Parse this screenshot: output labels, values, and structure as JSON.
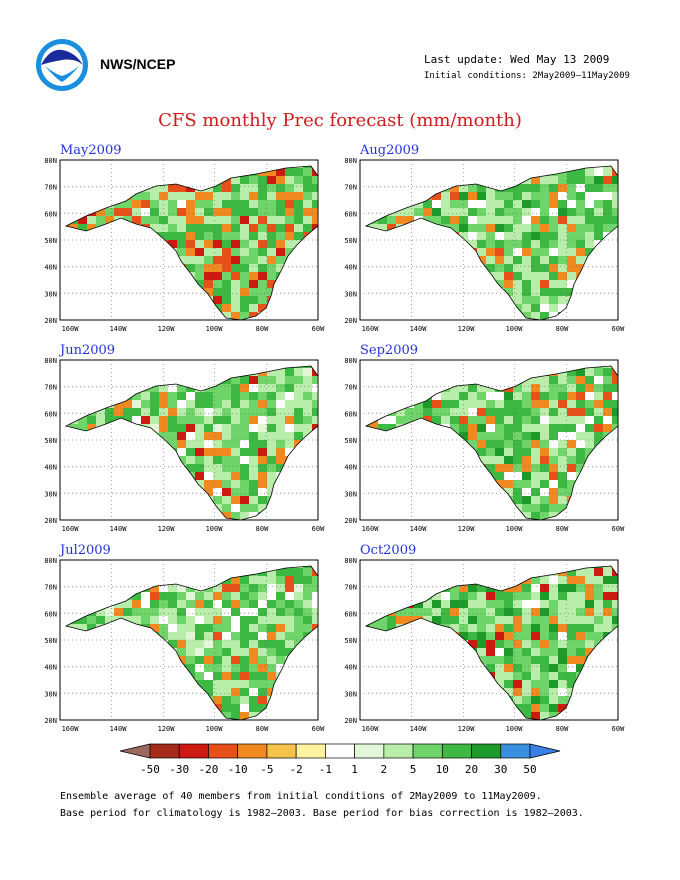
{
  "header": {
    "org": "NWS/NCEP",
    "last_update": "Last update: Wed May 13 2009",
    "initial_conditions": "Initial conditions: 2May2009–11May2009"
  },
  "title": "CFS monthly Prec forecast (mm/month)",
  "panels": [
    {
      "label": "May2009"
    },
    {
      "label": "Aug2009"
    },
    {
      "label": "Jun2009"
    },
    {
      "label": "Sep2009"
    },
    {
      "label": "Jul2009"
    },
    {
      "label": "Oct2009"
    }
  ],
  "axes": {
    "lat_labels": [
      "80N",
      "70N",
      "60N",
      "50N",
      "40N",
      "30N",
      "20N"
    ],
    "lon_labels": [
      "160W",
      "140W",
      "120W",
      "100W",
      "80W",
      "60W"
    ]
  },
  "colorbar": {
    "labels": [
      "-50",
      "-30",
      "-20",
      "-10",
      "-5",
      "-2",
      "-1",
      "1",
      "2",
      "5",
      "10",
      "20",
      "30",
      "50"
    ],
    "colors": [
      "#9b6a5e",
      "#a52a1a",
      "#cc1a10",
      "#e8501a",
      "#f08a20",
      "#f5c24a",
      "#fff2a0",
      "#ffffff",
      "#e2f7d8",
      "#b9edaa",
      "#6fd46a",
      "#3db842",
      "#1d9a2a",
      "#3a8fe0",
      "#3a7ee8"
    ]
  },
  "footer": {
    "line1": "Ensemble average of 40 members from initial conditions of 2May2009 to 11May2009.",
    "line2": "Base period for climatology is 1982–2003. Base period for bias correction is 1982–2003."
  }
}
